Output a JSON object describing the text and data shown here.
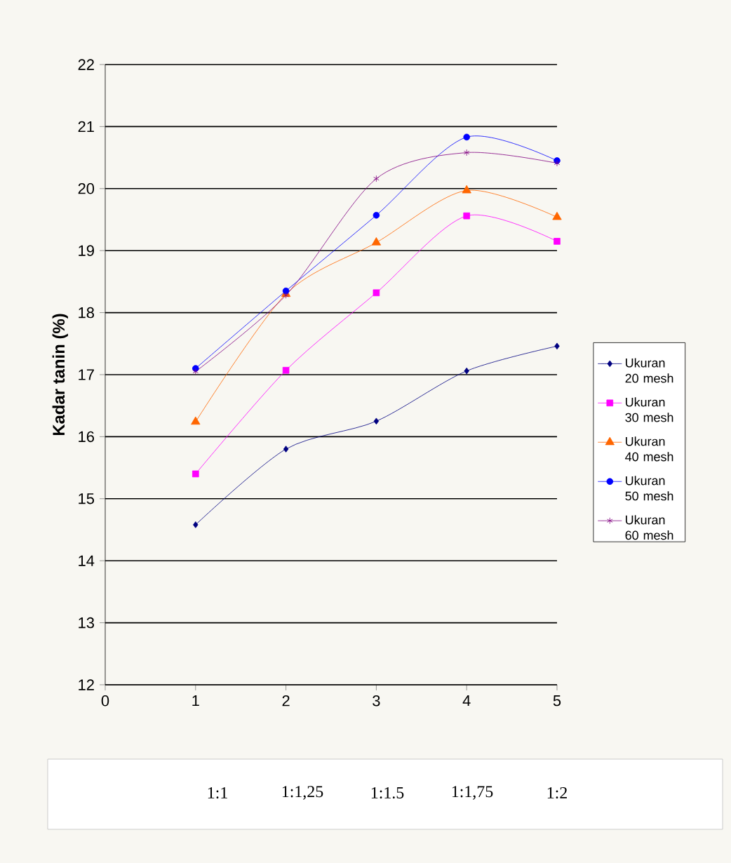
{
  "chart_data": {
    "type": "line",
    "ylabel": "Kadar tanin (%)",
    "x": [
      1,
      2,
      3,
      4,
      5
    ],
    "xlim": [
      0,
      5
    ],
    "xticks": [
      0,
      1,
      2,
      3,
      4,
      5
    ],
    "ylim": [
      12,
      22
    ],
    "yticks": [
      12,
      13,
      14,
      15,
      16,
      17,
      18,
      19,
      20,
      21,
      22
    ],
    "grid": "y",
    "legend": "right",
    "series": [
      {
        "name": "Ukuran 20 mesh",
        "color": "#000080",
        "marker": "diamond",
        "values": [
          14.58,
          15.8,
          16.25,
          17.06,
          17.46
        ]
      },
      {
        "name": "Ukuran 30 mesh",
        "color": "#ff00ff",
        "marker": "square",
        "values": [
          15.4,
          17.07,
          18.32,
          19.56,
          19.15
        ]
      },
      {
        "name": "Ukuran 40 mesh",
        "color": "#ff6600",
        "marker": "triangle",
        "values": [
          16.24,
          18.3,
          19.13,
          19.97,
          19.54
        ]
      },
      {
        "name": "Ukuran 50 mesh",
        "color": "#0000ff",
        "marker": "circle",
        "values": [
          17.1,
          18.35,
          19.57,
          20.83,
          20.45
        ]
      },
      {
        "name": "Ukuran 60 mesh",
        "color": "#800080",
        "marker": "cross",
        "values": [
          17.05,
          18.28,
          20.16,
          20.58,
          20.41
        ]
      }
    ],
    "annotations": [
      "1:1",
      "1:1,25",
      "1:1.5",
      "1:1,75",
      "1:2"
    ]
  }
}
